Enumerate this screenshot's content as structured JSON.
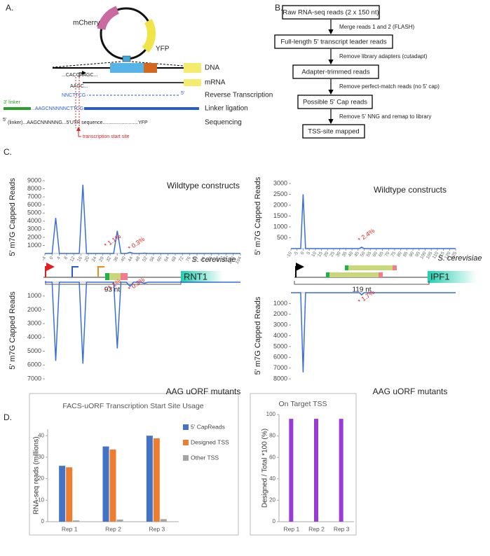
{
  "labels": {
    "a": "A.",
    "b": "B.",
    "c": "C.",
    "d": "D."
  },
  "construct": {
    "plasmid": [
      "mCherry",
      "YFP"
    ],
    "tracks": [
      "DNA",
      "mRNA",
      "Reverse Transcription",
      "Linker ligation",
      "Sequencing"
    ],
    "dna_seq": "...CACCAAGC...",
    "mrna_seq": "AAGC...",
    "rt_seq": "NNCTTCG",
    "rt_end": "5'",
    "linker": "3' linker",
    "linker_seq": "...AAGCNNNNNCTTCG",
    "read_prefix": "5'",
    "read_seq": "(linker)...AAGCNNNNNG...5'UTR sequence..........................YFP",
    "tss": "transcription start site"
  },
  "flowchart": {
    "boxes": [
      "Raw RNA-seq reads (2 x 150 nt)",
      "Full-length 5' transcript leader reads",
      "Adapter-trimmed reads",
      "Possible 5' Cap reads",
      "TSS-site mapped"
    ],
    "steps": [
      "Merge reads 1 and 2 (FLASH)",
      "Remove library adapters (cutadapt)",
      "Remove perfect-match reads (no 5' cap)",
      "Remove 5' NNG and remap to library"
    ]
  },
  "gene_maps": [
    {
      "species": "S. cerevisiae",
      "gene": "RNT1",
      "length": "93 nt"
    },
    {
      "species": "S. cerevisiae",
      "gene": "IPF1",
      "length": "119 nt"
    }
  ],
  "chart_data": [
    {
      "type": "line",
      "title": "Wildtype constructs",
      "ylabel": "5' m7G Capped Reads",
      "color": "#3a6fd8",
      "x": [
        -4,
        0,
        2,
        4,
        15,
        17,
        19,
        34,
        36,
        38,
        41,
        43,
        45,
        49,
        51,
        53,
        104
      ],
      "values": [
        0,
        0,
        4400,
        0,
        0,
        8500,
        0,
        0,
        2800,
        0,
        0,
        150,
        0,
        0,
        40,
        0,
        0
      ],
      "xlim": [
        -4,
        104
      ],
      "ylim": [
        0,
        9000
      ],
      "xticks": [
        -4,
        0,
        4,
        8,
        12,
        16,
        20,
        24,
        28,
        32,
        36,
        40,
        44,
        48,
        52,
        56,
        60,
        64,
        68,
        72,
        76,
        80,
        84,
        88,
        92,
        96,
        100,
        104
      ],
      "yticks": [
        1000,
        2000,
        3000,
        4000,
        5000,
        6000,
        7000,
        8000,
        9000
      ],
      "annotations": [
        "* 1.1%",
        "* 0.3%"
      ]
    },
    {
      "type": "line",
      "title": "AAG uORF mutants",
      "ylabel": "5' m7G Capped Reads",
      "color": "#3a6fd8",
      "y_inverted": true,
      "x": [
        -4,
        0,
        2,
        4,
        15,
        17,
        19,
        34,
        36,
        38,
        41,
        43,
        45,
        49,
        51,
        53,
        104
      ],
      "values": [
        0,
        0,
        5700,
        0,
        0,
        5900,
        0,
        0,
        4800,
        0,
        0,
        300,
        0,
        0,
        80,
        0,
        0
      ],
      "xlim": [
        -4,
        104
      ],
      "ylim": [
        0,
        7000
      ],
      "yticks": [
        1000,
        2000,
        3000,
        4000,
        5000,
        6000,
        7000
      ],
      "annotations": [
        "* 1.1%",
        "* 0.3%"
      ]
    },
    {
      "type": "line",
      "title": "Wildtype constructs",
      "ylabel": "5' m7G Capped Reads",
      "color": "#3a6fd8",
      "x": [
        -10,
        -2,
        0,
        2,
        46,
        48,
        50,
        125
      ],
      "values": [
        0,
        0,
        2500,
        0,
        0,
        70,
        0,
        0
      ],
      "xlim": [
        -10,
        125
      ],
      "ylim": [
        0,
        3000
      ],
      "xticks": [
        -10,
        -5,
        0,
        5,
        10,
        15,
        20,
        25,
        30,
        35,
        40,
        45,
        50,
        55,
        60,
        65,
        70,
        75,
        80,
        85,
        90,
        95,
        100,
        105,
        110,
        115,
        120,
        125
      ],
      "yticks": [
        500,
        1000,
        1500,
        2000,
        2500,
        3000
      ],
      "annotations": [
        "* 2.4%"
      ]
    },
    {
      "type": "line",
      "title": "AAG uORF mutants",
      "ylabel": "5' m7G Capped Reads",
      "color": "#3a6fd8",
      "y_inverted": true,
      "x": [
        -10,
        -2,
        0,
        2,
        46,
        48,
        50,
        125
      ],
      "values": [
        0,
        0,
        7400,
        0,
        0,
        200,
        0,
        0
      ],
      "xlim": [
        -10,
        125
      ],
      "ylim": [
        0,
        8000
      ],
      "yticks": [
        1000,
        2000,
        3000,
        4000,
        5000,
        6000,
        7000,
        8000
      ],
      "annotations": [
        "* 1.7%"
      ]
    },
    {
      "type": "bar",
      "title": "FACS-uORF Transcription Start Site Usage",
      "ylabel": "RNA-seq reads (millions)",
      "categories": [
        "Rep 1",
        "Rep 2",
        "Rep 3"
      ],
      "series": [
        {
          "name": "5' CapReads",
          "color": "#4472c4",
          "values": [
            26,
            35,
            40
          ]
        },
        {
          "name": "Designed TSS",
          "color": "#ed7d31",
          "values": [
            25.3,
            33.6,
            38.8
          ]
        },
        {
          "name": "Other TSS",
          "color": "#a5a5a5",
          "values": [
            0.6,
            1,
            1.2
          ]
        }
      ],
      "ylim": [
        0,
        43
      ],
      "yticks": [
        0,
        10,
        20,
        30,
        40
      ],
      "legend": "right"
    },
    {
      "type": "bar",
      "title": "On Target TSS",
      "ylabel": "Designed / Total *100 (%)",
      "categories": [
        "Rep 1",
        "Rep 2",
        "Rep 3"
      ],
      "values": [
        96,
        96,
        96
      ],
      "color": "#9a3bd6",
      "ylim": [
        0,
        100
      ],
      "yticks": [
        0,
        20,
        40,
        60,
        80,
        100
      ]
    }
  ]
}
